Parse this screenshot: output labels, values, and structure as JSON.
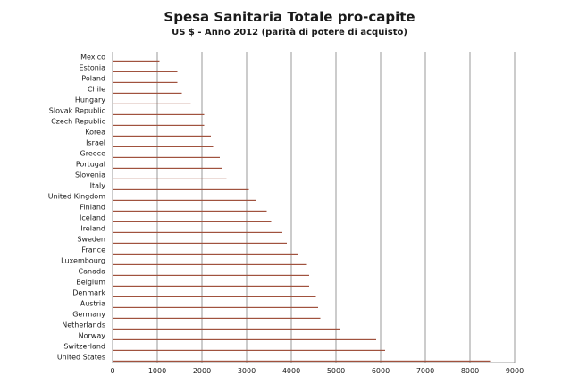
{
  "chart_data": {
    "type": "bar",
    "orientation": "horizontal",
    "title": "Spesa Sanitaria Totale pro-capite",
    "subtitle": "US $ - Anno 2012 (parità di potere di acquisto)",
    "xlabel": "",
    "ylabel": "",
    "xlim": [
      0,
      9000
    ],
    "xticks": [
      0,
      1000,
      2000,
      3000,
      4000,
      5000,
      6000,
      7000,
      8000,
      9000
    ],
    "grid": true,
    "bar_color": "#a0523e",
    "grid_color": "#7f7f7f",
    "categories": [
      "Mexico",
      "Estonia",
      "Poland",
      "Chile",
      "Hungary",
      "Slovak Republic",
      "Czech Republic",
      "Korea",
      "Israel",
      "Greece",
      "Portugal",
      "Slovenia",
      "Italy",
      "United Kingdom",
      "Finland",
      "Iceland",
      "Ireland",
      "Sweden",
      "France",
      "Luxembourg",
      "Canada",
      "Belgium",
      "Denmark",
      "Austria",
      "Germany",
      "Netherlands",
      "Norway",
      "Switzerland",
      "United States"
    ],
    "values": [
      1050,
      1450,
      1450,
      1550,
      1750,
      2050,
      2050,
      2200,
      2250,
      2400,
      2450,
      2550,
      3050,
      3200,
      3450,
      3550,
      3800,
      3900,
      4150,
      4350,
      4400,
      4400,
      4550,
      4600,
      4650,
      5100,
      5900,
      6100,
      8450
    ]
  }
}
